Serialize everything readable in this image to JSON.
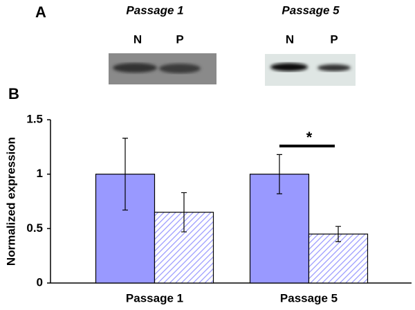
{
  "chart_data": {
    "type": "bar",
    "panel_labels": [
      "A",
      "B"
    ],
    "blots": [
      {
        "title": "Passage 1",
        "lanes": [
          "N",
          "P"
        ]
      },
      {
        "title": "Passage 5",
        "lanes": [
          "N",
          "P"
        ]
      }
    ],
    "y_label": "Normalized expression",
    "categories": [
      "Passage 1",
      "Passage 5"
    ],
    "series": [
      {
        "color": "#9999ff",
        "values": [
          1,
          1
        ],
        "errors": [
          0.33,
          0.18
        ]
      },
      {
        "color": "#9999ff",
        "hatch": true,
        "values": [
          0.65,
          0.45
        ],
        "errors": [
          0.18,
          0.07
        ]
      }
    ],
    "ylim": [
      0,
      1.5
    ],
    "yticks": [
      0,
      0.5,
      1,
      1.5
    ],
    "annotations": [
      {
        "text": "*"
      }
    ]
  }
}
